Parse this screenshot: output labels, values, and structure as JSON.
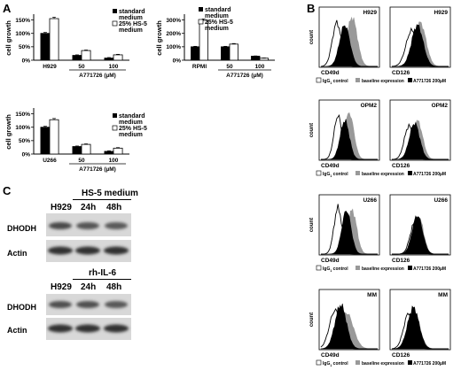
{
  "panels": {
    "A": "A",
    "B": "B",
    "C": "C"
  },
  "legend": {
    "standard": "standard medium",
    "standard_l1": "standard",
    "standard_l2": "medium",
    "hs5_l1": "25% HS-5",
    "hs5_l2": "medium"
  },
  "chart_data": [
    {
      "type": "bar",
      "categories": [
        "H929",
        "50",
        "100"
      ],
      "group_label": "A771726 (µM)",
      "ylabel": "cell growth",
      "yticks": [
        "0%",
        "50%",
        "100%",
        "150%"
      ],
      "ylim": [
        0,
        165
      ],
      "series": [
        {
          "name": "standard medium",
          "values": [
            100,
            18,
            8
          ]
        },
        {
          "name": "25% HS-5 medium",
          "values": [
            155,
            36,
            20
          ]
        }
      ]
    },
    {
      "type": "bar",
      "categories": [
        "RPMI",
        "50",
        "100"
      ],
      "group_label": "A771726 (µM)",
      "ylabel": "cell growth",
      "yticks": [
        "0%",
        "100%",
        "200%",
        "300%"
      ],
      "ylim": [
        0,
        330
      ],
      "series": [
        {
          "name": "standard medium",
          "values": [
            100,
            100,
            30
          ]
        },
        {
          "name": "25% HS-5 medium",
          "values": [
            297,
            120,
            15
          ]
        }
      ]
    },
    {
      "type": "bar",
      "categories": [
        "U266",
        "50",
        "100"
      ],
      "group_label": "A771726 (µM)",
      "ylabel": "cell growth",
      "yticks": [
        "0%",
        "50%",
        "100%",
        "150%"
      ],
      "ylim": [
        0,
        165
      ],
      "series": [
        {
          "name": "standard medium",
          "values": [
            100,
            28,
            10
          ]
        },
        {
          "name": "25% HS-5 medium",
          "values": [
            128,
            36,
            22
          ]
        }
      ]
    }
  ],
  "flow": {
    "count": "count",
    "rows": [
      {
        "line": "H929",
        "left_x": "CD49d",
        "right_x": "CD126"
      },
      {
        "line": "OPM2",
        "left_x": "CD49d",
        "right_x": "CD126"
      },
      {
        "line": "U266",
        "left_x": "CD49d",
        "right_x": "CD126"
      },
      {
        "line": "MM",
        "left_x": "CD49d",
        "right_x": "CD126"
      }
    ],
    "legend": {
      "igg": "IgG",
      "igg_sub": "1",
      "igg_rest": " control",
      "baseline": "baseline expression",
      "treated": "A771726 200µM"
    }
  },
  "western": {
    "top": {
      "header": "HS-5 medium",
      "lanes": [
        "H929",
        "24h",
        "48h"
      ],
      "rows": [
        "DHODH",
        "Actin"
      ]
    },
    "bottom": {
      "header": "rh-IL-6",
      "lanes": [
        "H929",
        "24h",
        "48h"
      ],
      "rows": [
        "DHODH",
        "Actin"
      ]
    }
  }
}
